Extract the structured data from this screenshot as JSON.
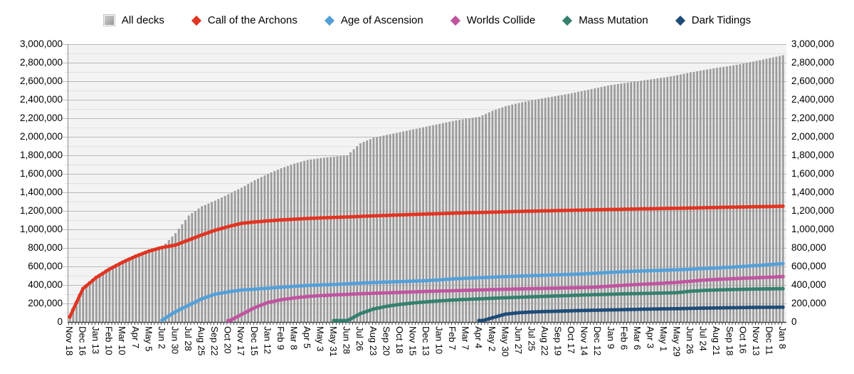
{
  "legend": {
    "items": [
      {
        "label": "All decks",
        "color": "#a9a9a9",
        "marker": "square"
      },
      {
        "label": "Call of the Archons",
        "color": "#e13422",
        "marker": "diamond"
      },
      {
        "label": "Age of Ascension",
        "color": "#55a0d8",
        "marker": "diamond"
      },
      {
        "label": "Worlds Collide",
        "color": "#bf55a0",
        "marker": "diamond"
      },
      {
        "label": "Mass Mutation",
        "color": "#35806f",
        "marker": "diamond"
      },
      {
        "label": "Dark Tidings",
        "color": "#1e4c78",
        "marker": "diamond"
      }
    ]
  },
  "y_axis": {
    "tick_labels": [
      "0",
      "200,000",
      "400,000",
      "600,000",
      "800,000",
      "1,000,000",
      "1,200,000",
      "1,400,000",
      "1,600,000",
      "1,800,000",
      "2,000,000",
      "2,200,000",
      "2,400,000",
      "2,600,000",
      "2,800,000",
      "3,000,000"
    ],
    "min": 0,
    "max": 3000000,
    "major_step": 200000,
    "minor_step": 100000,
    "shown_on_both_sides": true
  },
  "chart_data": {
    "type": "combo",
    "description": "Weekly cumulative registered decks: gray bars = all decks, lines = per-set totals. One bar per week; x tick labels every 4 weeks.",
    "x_labels": [
      "Nov 18",
      "Dec 16",
      "Jan 13",
      "Feb 10",
      "Mar 10",
      "Apr 7",
      "May 5",
      "Jun 2",
      "Jun 30",
      "Jul 28",
      "Aug 25",
      "Sep 22",
      "Oct 20",
      "Nov 17",
      "Dec 15",
      "Jan 12",
      "Feb 9",
      "Mar 8",
      "Apr 5",
      "May 3",
      "May 31",
      "Jun 28",
      "Jul 26",
      "Aug 23",
      "Sep 20",
      "Oct 18",
      "Nov 15",
      "Dec 13",
      "Jan 10",
      "Feb 7",
      "Mar 7",
      "Apr 4",
      "May 2",
      "May 30",
      "Jun 27",
      "Jul 25",
      "Aug 22",
      "Sep 19",
      "Oct 17",
      "Nov 14",
      "Dec 12",
      "Jan 9",
      "Feb 6",
      "Mar 6",
      "Apr 3",
      "May 1",
      "May 29",
      "Jun 26",
      "Jul 24",
      "Aug 21",
      "Sep 18",
      "Oct 16",
      "Nov 13",
      "Dec 11",
      "Jan 8"
    ],
    "weeks_per_x_label": 4,
    "ylim": [
      0,
      3000000
    ],
    "grid": true,
    "legend_position": "top",
    "bar_series": {
      "name": "All decks",
      "color_light": "#c4c4c4",
      "color_dark": "#959595",
      "values": [
        55000,
        370000,
        480000,
        570000,
        645000,
        710000,
        765000,
        810000,
        960000,
        1150000,
        1250000,
        1310000,
        1380000,
        1450000,
        1530000,
        1600000,
        1660000,
        1710000,
        1750000,
        1770000,
        1785000,
        1800000,
        1930000,
        1990000,
        2020000,
        2050000,
        2080000,
        2110000,
        2140000,
        2170000,
        2195000,
        2215000,
        2280000,
        2330000,
        2365000,
        2395000,
        2420000,
        2445000,
        2470000,
        2500000,
        2530000,
        2560000,
        2580000,
        2600000,
        2620000,
        2640000,
        2665000,
        2695000,
        2720000,
        2745000,
        2765000,
        2790000,
        2820000,
        2850000,
        2880000
      ]
    },
    "line_series": [
      {
        "name": "Call of the Archons",
        "color": "#e13422",
        "values": [
          55000,
          360000,
          480000,
          570000,
          645000,
          710000,
          765000,
          805000,
          830000,
          885000,
          940000,
          990000,
          1030000,
          1065000,
          1080000,
          1092000,
          1102000,
          1110000,
          1118000,
          1124000,
          1129000,
          1134000,
          1140000,
          1146000,
          1151000,
          1156000,
          1161000,
          1166000,
          1170000,
          1175000,
          1179000,
          1182000,
          1186000,
          1190000,
          1194000,
          1197000,
          1200000,
          1203000,
          1206000,
          1209000,
          1212000,
          1215000,
          1218000,
          1221000,
          1223000,
          1226000,
          1228000,
          1231000,
          1234000,
          1237000,
          1240000,
          1242000,
          1245000,
          1247000,
          1250000
        ]
      },
      {
        "name": "Age of Ascension",
        "color": "#55a0d8",
        "values": [
          null,
          null,
          null,
          null,
          null,
          null,
          null,
          20000,
          110000,
          180000,
          250000,
          300000,
          325000,
          345000,
          355000,
          365000,
          375000,
          385000,
          395000,
          400000,
          405000,
          412000,
          420000,
          426000,
          431000,
          436000,
          441000,
          446000,
          455000,
          465000,
          472000,
          478000,
          484000,
          490000,
          495000,
          500000,
          505000,
          510000,
          515000,
          520000,
          528000,
          536000,
          543000,
          549000,
          554000,
          559000,
          564000,
          570000,
          577000,
          584000,
          591000,
          600000,
          610000,
          620000,
          630000
        ]
      },
      {
        "name": "Worlds Collide",
        "color": "#bf55a0",
        "values": [
          null,
          null,
          null,
          null,
          null,
          null,
          null,
          null,
          null,
          null,
          null,
          null,
          5000,
          80000,
          155000,
          210000,
          240000,
          260000,
          275000,
          285000,
          292000,
          298000,
          305000,
          310000,
          315000,
          320000,
          325000,
          330000,
          334000,
          338000,
          342000,
          346000,
          350000,
          354000,
          357000,
          360000,
          363000,
          366000,
          369000,
          372000,
          378000,
          388000,
          397000,
          405000,
          412000,
          420000,
          428000,
          440000,
          452000,
          460000,
          466000,
          472000,
          478000,
          484000,
          490000
        ]
      },
      {
        "name": "Mass Mutation",
        "color": "#35806f",
        "values": [
          null,
          null,
          null,
          null,
          null,
          null,
          null,
          null,
          null,
          null,
          null,
          null,
          null,
          null,
          null,
          null,
          null,
          null,
          null,
          null,
          3000,
          12000,
          90000,
          140000,
          170000,
          190000,
          205000,
          218000,
          228000,
          237000,
          244000,
          250000,
          256000,
          262000,
          267000,
          272000,
          277000,
          282000,
          287000,
          292000,
          296000,
          300000,
          304000,
          307000,
          310000,
          313000,
          317000,
          332000,
          341000,
          346000,
          350000,
          353000,
          356000,
          358000,
          360000
        ]
      },
      {
        "name": "Dark Tidings",
        "color": "#1e4c78",
        "values": [
          null,
          null,
          null,
          null,
          null,
          null,
          null,
          null,
          null,
          null,
          null,
          null,
          null,
          null,
          null,
          null,
          null,
          null,
          null,
          null,
          null,
          null,
          null,
          null,
          null,
          null,
          null,
          null,
          null,
          null,
          null,
          3000,
          45000,
          85000,
          100000,
          108000,
          113000,
          117000,
          121000,
          125000,
          128000,
          131000,
          134000,
          137000,
          140000,
          142000,
          144000,
          147000,
          150000,
          152000,
          154000,
          156000,
          158000,
          159000,
          160000
        ]
      }
    ]
  },
  "plot_style": {
    "plot_bg": "#f3f3f3",
    "major_grid": "#b9b9b9",
    "minor_grid": "#e1e1e1",
    "axis_line": "#444444",
    "spine": "#8e8e8e"
  }
}
